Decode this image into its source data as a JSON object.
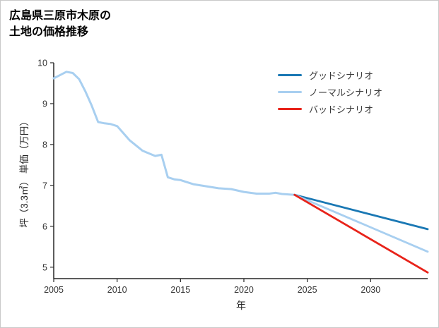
{
  "page": {
    "background": "#ffffff",
    "border_color": "#c9c9c9"
  },
  "title": {
    "line1": "広島県三原市木原の",
    "line2": "土地の価格推移"
  },
  "chart_data": {
    "type": "line",
    "title": "広島県三原市木原の土地の価格推移",
    "xlabel": "年",
    "ylabel": "坪（3.3㎡） 単価（万円）",
    "axis_color": "#262626",
    "tick_label_color": "#333333",
    "grid": false,
    "legend_position": "top-right",
    "xlim": [
      2005,
      2034.5
    ],
    "ylim": [
      4.72,
      10
    ],
    "xticks": [
      2005,
      2010,
      2015,
      2020,
      2025,
      2030
    ],
    "yticks": [
      5,
      6,
      7,
      8,
      9,
      10
    ],
    "legend": [
      {
        "label": "グッドシナリオ",
        "color": "#1a78b4"
      },
      {
        "label": "ノーマルシナリオ",
        "color": "#a8cff0"
      },
      {
        "label": "バッドシナリオ",
        "color": "#e8231a"
      }
    ],
    "series": [
      {
        "key": "historical",
        "color": "#a8cff0",
        "width": 3,
        "x": [
          2005,
          2005.5,
          2006,
          2006.5,
          2007,
          2007.5,
          2008,
          2008.5,
          2009,
          2009.5,
          2010,
          2011,
          2012,
          2013,
          2013.5,
          2014,
          2014.5,
          2015,
          2016,
          2017,
          2018,
          2019,
          2020,
          2021,
          2022,
          2022.5,
          2023,
          2024
        ],
        "values": [
          9.62,
          9.7,
          9.78,
          9.75,
          9.6,
          9.3,
          8.95,
          8.55,
          8.52,
          8.5,
          8.45,
          8.1,
          7.85,
          7.72,
          7.75,
          7.2,
          7.15,
          7.13,
          7.03,
          6.98,
          6.93,
          6.91,
          6.84,
          6.8,
          6.8,
          6.82,
          6.79,
          6.77
        ]
      },
      {
        "key": "good-scenario",
        "color": "#1a78b4",
        "width": 2.8,
        "x": [
          2024,
          2034.5
        ],
        "values": [
          6.77,
          5.93
        ]
      },
      {
        "key": "normal-scenario",
        "color": "#a8cff0",
        "width": 2.8,
        "x": [
          2024,
          2034.5
        ],
        "values": [
          6.77,
          5.38
        ]
      },
      {
        "key": "bad-scenario",
        "color": "#e8231a",
        "width": 2.8,
        "x": [
          2024,
          2034.5
        ],
        "values": [
          6.77,
          4.87
        ]
      }
    ]
  }
}
